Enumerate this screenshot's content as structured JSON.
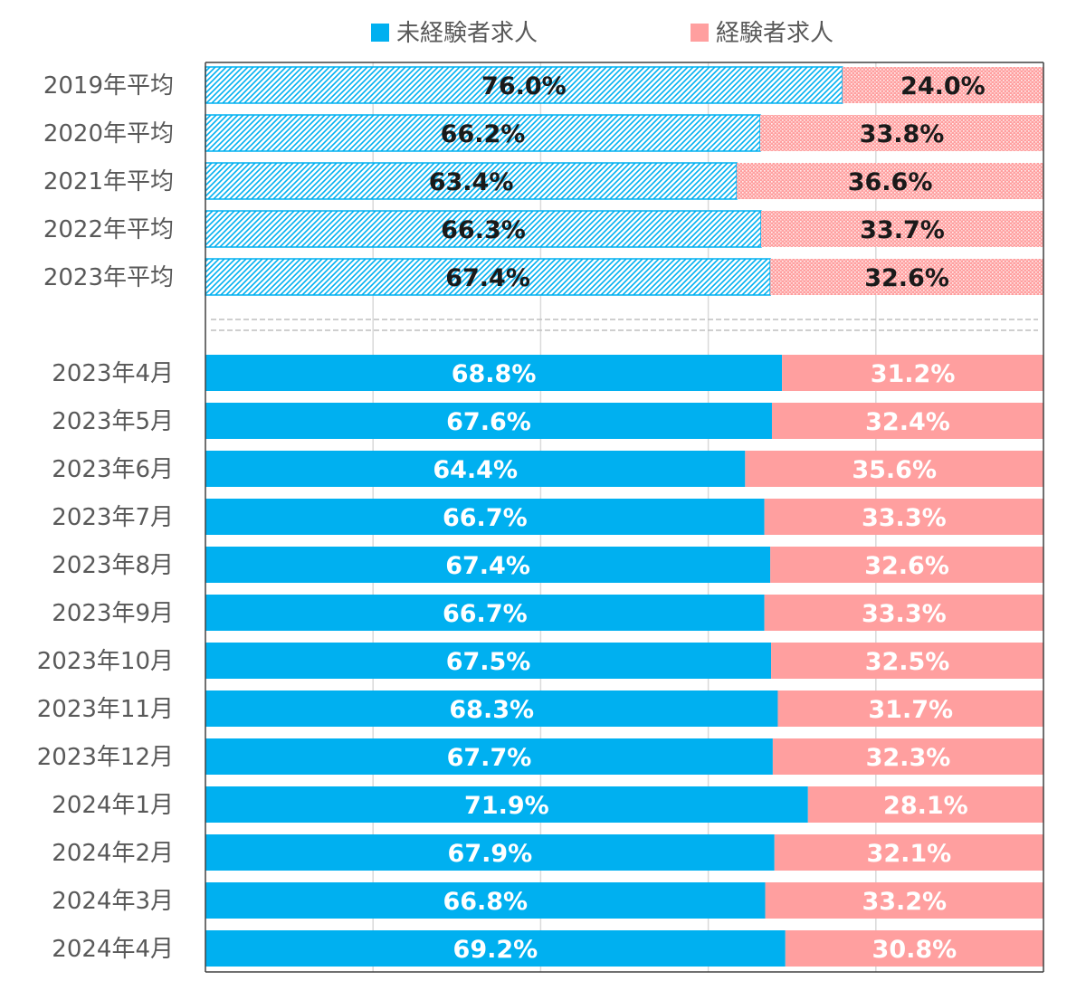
{
  "chart_data": {
    "type": "bar",
    "orientation": "horizontal",
    "stacked": "percent",
    "legend": {
      "placement": "top",
      "items": [
        {
          "name": "未経験者求人",
          "color": "#00b0f0"
        },
        {
          "name": "経験者求人",
          "color": "#ff9f9f"
        }
      ]
    },
    "groups": [
      {
        "style": "patterned",
        "categories": [
          "2019年平均",
          "2020年平均",
          "2021年平均",
          "2022年平均",
          "2023年平均"
        ],
        "series": [
          {
            "name": "未経験者求人",
            "values": [
              76.0,
              66.2,
              63.4,
              66.3,
              67.4
            ],
            "labels": [
              "76.0%",
              "66.2%",
              "63.4%",
              "66.3%",
              "67.4%"
            ]
          },
          {
            "name": "経験者求人",
            "values": [
              24.0,
              33.8,
              36.6,
              33.7,
              32.6
            ],
            "labels": [
              "24.0%",
              "33.8%",
              "36.6%",
              "33.7%",
              "32.6%"
            ]
          }
        ]
      },
      {
        "style": "solid",
        "categories": [
          "2023年4月",
          "2023年5月",
          "2023年6月",
          "2023年7月",
          "2023年8月",
          "2023年9月",
          "2023年10月",
          "2023年11月",
          "2023年12月",
          "2024年1月",
          "2024年2月",
          "2024年3月",
          "2024年4月"
        ],
        "series": [
          {
            "name": "未経験者求人",
            "values": [
              68.8,
              67.6,
              64.4,
              66.7,
              67.4,
              66.7,
              67.5,
              68.3,
              67.7,
              71.9,
              67.9,
              66.8,
              69.2
            ],
            "labels": [
              "68.8%",
              "67.6%",
              "64.4%",
              "66.7%",
              "67.4%",
              "66.7%",
              "67.5%",
              "68.3%",
              "67.7%",
              "71.9%",
              "67.9%",
              "66.8%",
              "69.2%"
            ]
          },
          {
            "name": "経験者求人",
            "values": [
              31.2,
              32.4,
              35.6,
              33.3,
              32.6,
              33.3,
              32.5,
              31.7,
              32.3,
              28.1,
              32.1,
              33.2,
              30.8
            ],
            "labels": [
              "31.2%",
              "32.4%",
              "35.6%",
              "33.3%",
              "32.6%",
              "33.3%",
              "32.5%",
              "31.7%",
              "32.3%",
              "28.1%",
              "32.1%",
              "33.2%",
              "30.8%"
            ]
          }
        ]
      }
    ],
    "xlim": [
      0,
      100
    ],
    "grid": true
  }
}
